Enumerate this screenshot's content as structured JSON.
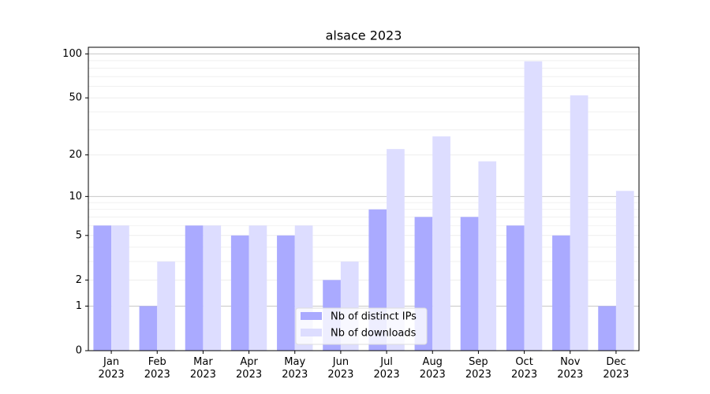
{
  "chart_data": {
    "type": "bar",
    "title": "alsace 2023",
    "y_scale": "log1p",
    "categories": [
      "Jan\n2023",
      "Feb\n2023",
      "Mar\n2023",
      "Apr\n2023",
      "May\n2023",
      "Jun\n2023",
      "Jul\n2023",
      "Aug\n2023",
      "Sep\n2023",
      "Oct\n2023",
      "Nov\n2023",
      "Dec\n2023"
    ],
    "series": [
      {
        "name": "Nb of distinct IPs",
        "color": "#aaaaff",
        "values": [
          6,
          1,
          6,
          5,
          5,
          2,
          8,
          7,
          7,
          6,
          5,
          1
        ]
      },
      {
        "name": "Nb of downloads",
        "color": "#ddddff",
        "values": [
          6,
          3,
          6,
          6,
          6,
          3,
          22,
          27,
          18,
          89,
          52,
          11
        ]
      }
    ],
    "ylim": [
      0,
      111
    ],
    "yticks": [
      0,
      1,
      2,
      5,
      10,
      20,
      50,
      100
    ],
    "minor_yticks": [
      3,
      4,
      6,
      7,
      8,
      9,
      30,
      40,
      60,
      70,
      80,
      90
    ],
    "grid": true,
    "legend": "lower center"
  }
}
